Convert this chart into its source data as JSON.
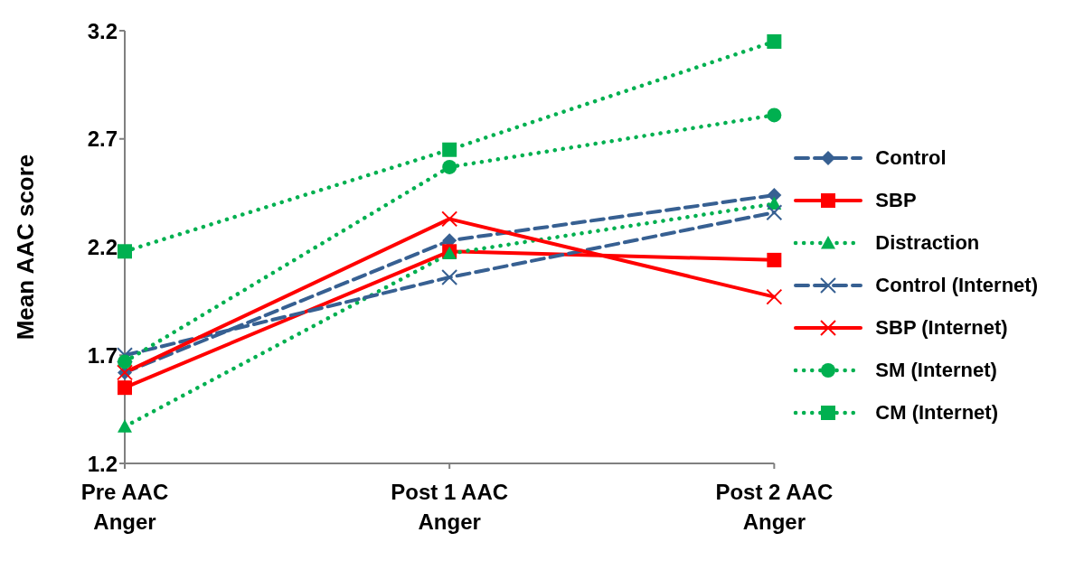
{
  "chart_data": {
    "type": "line",
    "ylabel": "Mean AAC score",
    "categories": [
      "Pre AAC Anger",
      "Post 1 AAC Anger",
      "Post 2 AAC Anger"
    ],
    "ylim": [
      1.2,
      3.2
    ],
    "yticks": [
      1.2,
      1.7,
      2.2,
      2.7,
      3.2
    ],
    "grid": false,
    "legend": "right",
    "series": [
      {
        "name": "Control",
        "color": "#376092",
        "marker": "diamond",
        "line_style": "dashed",
        "values": [
          1.62,
          2.23,
          2.44
        ]
      },
      {
        "name": "SBP",
        "color": "#ff0000",
        "marker": "square",
        "line_style": "solid",
        "values": [
          1.55,
          2.18,
          2.14
        ]
      },
      {
        "name": "Distraction",
        "color": "#00b050",
        "marker": "triangle",
        "line_style": "dotted",
        "values": [
          1.37,
          2.17,
          2.4
        ]
      },
      {
        "name": "Control (Internet)",
        "color": "#376092",
        "marker": "cross",
        "line_style": "dashed",
        "values": [
          1.7,
          2.06,
          2.36
        ]
      },
      {
        "name": "SBP (Internet)",
        "color": "#ff0000",
        "marker": "cross",
        "line_style": "solid",
        "values": [
          1.62,
          2.33,
          1.97
        ]
      },
      {
        "name": "SM (Internet)",
        "color": "#00b050",
        "marker": "circle",
        "line_style": "dotted",
        "values": [
          1.67,
          2.57,
          2.81
        ]
      },
      {
        "name": "CM (Internet)",
        "color": "#00b050",
        "marker": "square",
        "line_style": "dotted",
        "values": [
          2.18,
          2.65,
          3.15
        ]
      }
    ]
  }
}
